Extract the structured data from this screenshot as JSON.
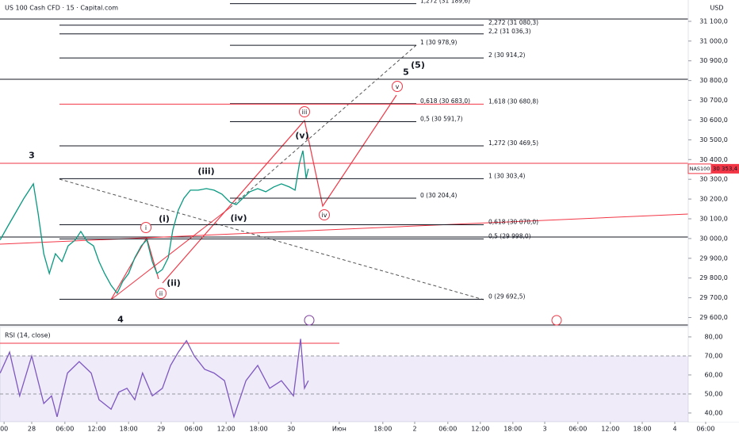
{
  "header": {
    "title": "US 100 Cash CFD · 15 · Capital.com",
    "currency": "USD"
  },
  "chart_data": [
    {
      "type": "line",
      "symbol": "NAS100",
      "last_price": {
        "value": 30353.4,
        "label": "30 353,4"
      },
      "xlim": [
        -0.976,
        20.195
      ],
      "ylim": [
        29554,
        31208
      ],
      "yticks": [
        {
          "value": 31100,
          "label": "31 100,0"
        },
        {
          "value": 31000,
          "label": "31 000,0"
        },
        {
          "value": 30900,
          "label": "30 900,0"
        },
        {
          "value": 30800,
          "label": "30 800,0"
        },
        {
          "value": 30700,
          "label": "30 700,0"
        },
        {
          "value": 30600,
          "label": "30 600,0"
        },
        {
          "value": 30500,
          "label": "30 500,0"
        },
        {
          "value": 30400,
          "label": "30 400,0"
        },
        {
          "value": 30300,
          "label": "30 300,0"
        },
        {
          "value": 30200,
          "label": "30 200,0"
        },
        {
          "value": 30100,
          "label": "30 100,0"
        },
        {
          "value": 30000,
          "label": "30 000,0"
        },
        {
          "value": 29900,
          "label": "29 900,0"
        },
        {
          "value": 29800,
          "label": "29 800,0"
        },
        {
          "value": 29700,
          "label": "29 700,0"
        },
        {
          "value": 29600,
          "label": "29 600,0"
        }
      ],
      "x": [
        -0.97,
        -0.73,
        -0.49,
        -0.24,
        0.05,
        0.2,
        0.37,
        0.54,
        0.73,
        0.93,
        1.12,
        1.34,
        1.51,
        1.71,
        1.9,
        2.07,
        2.24,
        2.44,
        2.63,
        2.8,
        2.98,
        3.17,
        3.37,
        3.54,
        3.71,
        3.85,
        4.02,
        4.2,
        4.34,
        4.51,
        4.68,
        4.88,
        5.12,
        5.37,
        5.61,
        5.85,
        6.1,
        6.29,
        6.49,
        6.71,
        6.95,
        7.2,
        7.44,
        7.68,
        7.93,
        8.1,
        8.24,
        8.34,
        8.44,
        8.51
      ],
      "series": [
        {
          "color": "#089981",
          "values": [
            29993,
            30064,
            30132,
            30204,
            30277,
            30124,
            29923,
            29823,
            29923,
            29883,
            29963,
            29993,
            30036,
            29984,
            29963,
            29883,
            29823,
            29763,
            29723,
            29783,
            29823,
            29903,
            29963,
            29993,
            29883,
            29823,
            29843,
            29903,
            30044,
            30144,
            30204,
            30245,
            30245,
            30253,
            30245,
            30225,
            30184,
            30172,
            30204,
            30237,
            30253,
            30237,
            30261,
            30277,
            30261,
            30245,
            30385,
            30445,
            30305,
            30353.4
          ]
        }
      ],
      "levels": [
        {
          "label": "1,272 (31 189,6)",
          "value": 31189.6
        },
        {
          "label": "2,272 (31 080,3)",
          "value": 31080.3
        },
        {
          "label": "2,2 (31 036,3)",
          "value": 31036.3
        },
        {
          "label": "1 (30 978,9)",
          "value": 30978.9
        },
        {
          "label": "2 (30 914,2)",
          "value": 30914.2
        },
        {
          "label": "0,618 (30 683,0)",
          "value": 30683.0
        },
        {
          "label": "1,618 (30 680,8)",
          "value": 30680.8,
          "color": "#f23645"
        },
        {
          "label": "0,5 (30 591,7)",
          "value": 30591.7
        },
        {
          "label": "1,272 (30 469,5)",
          "value": 30469.5
        },
        {
          "label": "1 (30 303,4)",
          "value": 30303.4
        },
        {
          "label": "0 (30 204,4)",
          "value": 30204.4
        },
        {
          "label": "0,618 (30 070,0)",
          "value": 30070.0
        },
        {
          "label": "0,5 (29 998,0)",
          "value": 29998.0
        },
        {
          "label": "0 (29 692,5)",
          "value": 29692.5
        }
      ],
      "wave_labels": [
        {
          "text": "3",
          "color": "#2f7f9e"
        },
        {
          "text": "4",
          "color": "#2f7f9e"
        },
        {
          "text": "5",
          "color": "#2f7f9e"
        },
        {
          "text": "(5)",
          "color": "#f23645"
        },
        {
          "text": "i",
          "color": "#f23645",
          "circled": true
        },
        {
          "text": "ii",
          "color": "#f23645",
          "circled": true
        },
        {
          "text": "iii",
          "color": "#f23645",
          "circled": true
        },
        {
          "text": "iv",
          "color": "#f23645",
          "circled": true
        },
        {
          "text": "v",
          "color": "#f23645",
          "circled": true
        },
        {
          "text": "(i)",
          "color": "#7e3fa0"
        },
        {
          "text": "(ii)",
          "color": "#7e3fa0"
        },
        {
          "text": "(iii)",
          "color": "#7e3fa0"
        },
        {
          "text": "(iv)",
          "color": "#7e3fa0"
        },
        {
          "text": "(v)",
          "color": "#7e3fa0"
        }
      ]
    },
    {
      "type": "line",
      "title": "RSI (14, close)",
      "xlim": [
        -0.976,
        20.195
      ],
      "ylim": [
        35.4,
        85.4
      ],
      "yticks": [
        {
          "value": 80,
          "label": "80,00"
        },
        {
          "value": 70,
          "label": "70,00"
        },
        {
          "value": 60,
          "label": "60,00"
        },
        {
          "value": 50,
          "label": "50,00"
        },
        {
          "value": 40,
          "label": "40,00"
        }
      ],
      "band": [
        30,
        70
      ],
      "dashed_lines": [
        70,
        50
      ],
      "xticks": [
        {
          "value": -0.85,
          "label": "00"
        },
        {
          "value": 0,
          "label": "28"
        },
        {
          "value": 1.02,
          "label": "06:00"
        },
        {
          "value": 2,
          "label": "12:00"
        },
        {
          "value": 2.98,
          "label": "18:00"
        },
        {
          "value": 3.98,
          "label": "29"
        },
        {
          "value": 4.98,
          "label": "06:00"
        },
        {
          "value": 5.98,
          "label": "12:00"
        },
        {
          "value": 6.98,
          "label": "18:00"
        },
        {
          "value": 7.98,
          "label": "30"
        },
        {
          "value": 9.46,
          "label": "Июн"
        },
        {
          "value": 10.8,
          "label": "18:00"
        },
        {
          "value": 11.78,
          "label": "2"
        },
        {
          "value": 12.8,
          "label": "06:00"
        },
        {
          "value": 13.8,
          "label": "12:00"
        },
        {
          "value": 14.8,
          "label": "18:00"
        },
        {
          "value": 15.78,
          "label": "3"
        },
        {
          "value": 16.8,
          "label": "06:00"
        },
        {
          "value": 17.8,
          "label": "12:00"
        },
        {
          "value": 18.78,
          "label": "18:00"
        },
        {
          "value": 19.78,
          "label": "4"
        },
        {
          "value": 20.73,
          "label": "06:00"
        }
      ],
      "x": [
        -0.97,
        -0.68,
        -0.37,
        0,
        0.37,
        0.61,
        0.78,
        1.1,
        1.46,
        1.83,
        2.07,
        2.44,
        2.68,
        2.93,
        3.17,
        3.41,
        3.71,
        4.02,
        4.27,
        4.51,
        4.76,
        5,
        5.32,
        5.61,
        5.93,
        6.22,
        6.59,
        6.95,
        7.32,
        7.68,
        8.05,
        8.27,
        8.39,
        8.51
      ],
      "series": [
        {
          "color": "#7e57c2",
          "values": [
            61,
            72,
            49,
            70,
            45,
            49,
            38,
            61,
            67,
            61,
            47,
            42,
            51,
            53,
            47,
            61,
            49,
            53,
            65,
            72,
            78,
            70,
            63,
            61,
            57,
            38,
            57,
            65,
            53,
            57,
            49,
            79,
            53,
            57
          ]
        }
      ]
    }
  ]
}
